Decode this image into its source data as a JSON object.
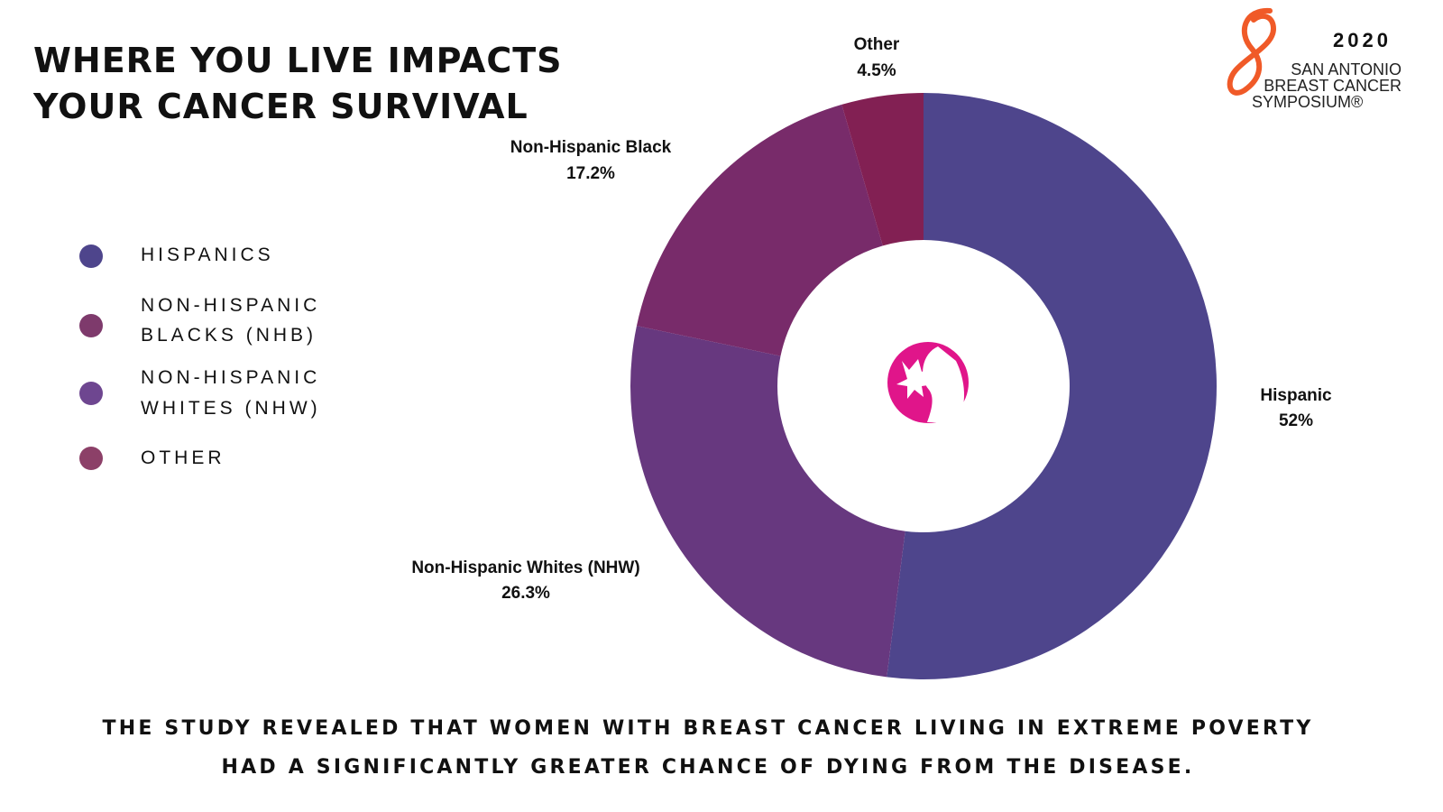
{
  "title_lines": [
    "WHERE YOU LIVE IMPACTS",
    "YOUR CANCER SURVIVAL"
  ],
  "logo": {
    "year": "2020",
    "org_lines": [
      "SAN ANTONIO",
      "BREAST CANCER",
      "SYMPOSIUM®"
    ]
  },
  "legend": [
    {
      "lines": [
        "HISPANICS"
      ],
      "color": "#4e458c"
    },
    {
      "lines": [
        "NON-HISPANIC",
        "BLACKS (NHB)"
      ],
      "color": "#7e3a6c"
    },
    {
      "lines": [
        "NON-HISPANIC",
        "WHITES (NHW)"
      ],
      "color": "#6e4690"
    },
    {
      "lines": [
        "OTHER"
      ],
      "color": "#8c4068"
    }
  ],
  "chart_data": {
    "type": "pie",
    "donut": true,
    "start": "top",
    "direction": "clockwise",
    "categories": [
      "Hispanic",
      "Non-Hispanic Whites (NHW)",
      "Non-Hispanic Black",
      "Other"
    ],
    "values": [
      52,
      26.3,
      17.2,
      4.5
    ],
    "value_labels": [
      "52%",
      "26.3%",
      "17.2%",
      "4.5%"
    ],
    "colors": [
      "#4e458c",
      "#67387f",
      "#782b6a",
      "#822053"
    ],
    "center_icon": "woman-profile-flower-icon"
  },
  "footer_lines": [
    "THE STUDY REVEALED THAT WOMEN WITH BREAST CANCER LIVING IN EXTREME POVERTY",
    "HAD A SIGNIFICANTLY GREATER CHANCE OF DYING FROM THE DISEASE."
  ]
}
